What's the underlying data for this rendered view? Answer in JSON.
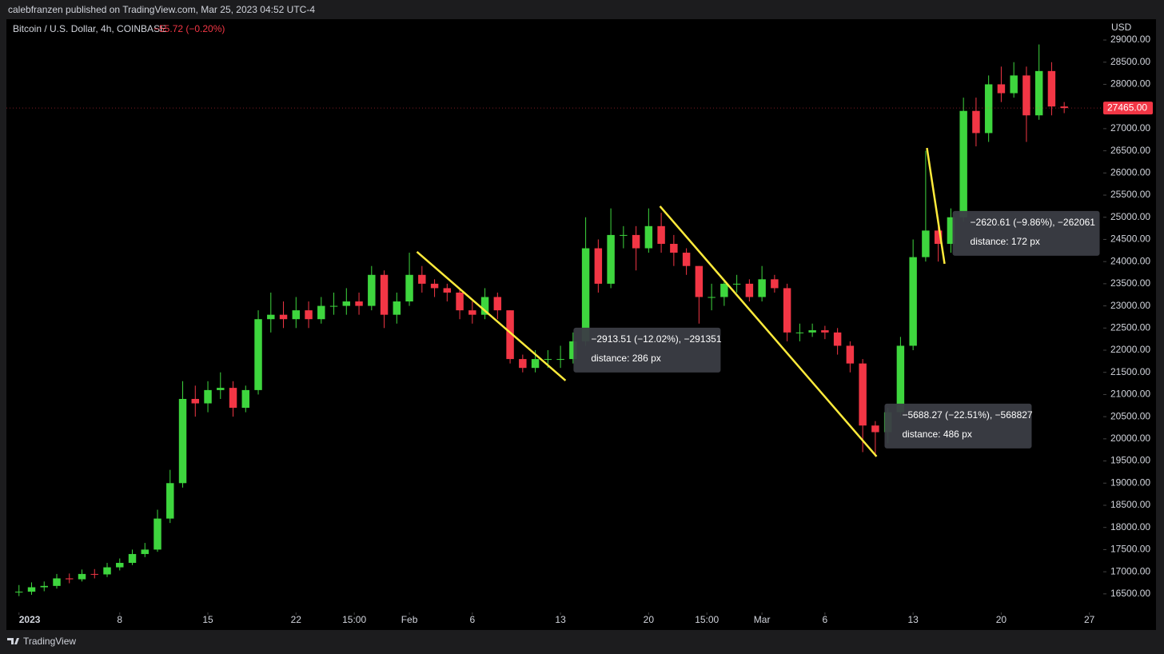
{
  "header": {
    "published": "calebfranzen published on TradingView.com, Mar 25, 2023 04:52 UTC-4"
  },
  "footer": {
    "brand": "TradingView"
  },
  "chart_data": {
    "type": "candlestick",
    "symbol": "Bitcoin / U.S. Dollar, 4h, COINBASE",
    "change": "−55.72 (−0.20%)",
    "currency": "USD",
    "up_color": "#3ed63e",
    "down_color": "#f23645",
    "grid": false,
    "x": [
      0,
      1,
      2,
      3,
      4,
      5,
      6,
      7,
      8,
      9,
      10,
      11,
      12,
      13,
      14,
      15,
      16,
      17,
      18,
      19,
      20,
      21,
      22,
      23,
      24,
      25,
      26,
      27,
      28,
      29,
      30,
      31,
      32,
      33,
      34,
      35,
      36,
      37,
      38,
      39,
      40,
      41,
      42,
      43,
      44,
      45,
      46,
      47,
      48,
      49,
      50,
      51,
      52,
      53,
      54,
      55,
      56,
      57,
      58,
      59,
      60,
      61,
      62,
      63,
      64,
      65,
      66,
      67,
      68,
      69,
      70,
      71,
      72,
      73,
      74,
      75,
      76,
      77,
      78,
      79,
      80,
      81,
      82,
      83
    ],
    "open": [
      16540,
      16550,
      16650,
      16680,
      16850,
      16830,
      16950,
      16940,
      17100,
      17200,
      17400,
      17500,
      18200,
      19000,
      20900,
      20800,
      21100,
      21150,
      20700,
      21100,
      22700,
      22800,
      22700,
      22900,
      22700,
      23000,
      23000,
      23100,
      23000,
      23700,
      22800,
      23100,
      23700,
      23500,
      23400,
      23300,
      22900,
      22800,
      23200,
      22900,
      21800,
      21600,
      21800,
      21800,
      21800,
      22200,
      24300,
      23500,
      24600,
      24600,
      24300,
      24800,
      24400,
      24200,
      23900,
      23200,
      23200,
      23500,
      23500,
      23200,
      23600,
      23400,
      22400,
      22400,
      22450,
      22400,
      22100,
      21700,
      20300,
      20150,
      20600,
      22100,
      24100,
      24700,
      24400,
      25000,
      27400,
      26900,
      28000,
      27800,
      28200,
      27300,
      28300,
      27500
    ],
    "high": [
      16700,
      16760,
      16780,
      16950,
      16960,
      17050,
      17060,
      17200,
      17300,
      17500,
      17650,
      18400,
      19300,
      21300,
      21200,
      21300,
      21500,
      21300,
      21200,
      22900,
      23300,
      23100,
      23200,
      23100,
      23200,
      23300,
      23400,
      23300,
      23900,
      23800,
      23300,
      24200,
      23900,
      23600,
      23500,
      23400,
      23100,
      23400,
      23300,
      22900,
      21900,
      22000,
      22000,
      22100,
      22400,
      25000,
      24500,
      25200,
      24800,
      24800,
      25200,
      25100,
      24600,
      24300,
      23900,
      23500,
      23600,
      23700,
      23600,
      23900,
      23700,
      23500,
      22600,
      22600,
      22550,
      22500,
      22200,
      21800,
      20400,
      20700,
      22300,
      24500,
      26500,
      25000,
      25200,
      27700,
      27700,
      28200,
      28400,
      28500,
      28400,
      28900,
      28500,
      27600
    ],
    "low": [
      16450,
      16480,
      16560,
      16620,
      16740,
      16780,
      16850,
      16880,
      17030,
      17150,
      17330,
      17450,
      18100,
      18900,
      20500,
      20600,
      20900,
      20500,
      20600,
      21000,
      22400,
      22500,
      22500,
      22500,
      22600,
      22800,
      22800,
      22800,
      22900,
      22500,
      22600,
      23000,
      23300,
      23200,
      23100,
      22700,
      22600,
      22700,
      22700,
      21700,
      21500,
      21500,
      21600,
      21600,
      21700,
      22100,
      23300,
      23400,
      24300,
      23800,
      24200,
      24200,
      23900,
      23700,
      22600,
      22900,
      23000,
      23300,
      23100,
      23100,
      23300,
      22200,
      22200,
      22300,
      22250,
      21900,
      21500,
      19700,
      19600,
      19900,
      20500,
      22000,
      24000,
      24000,
      24200,
      24900,
      26600,
      26700,
      27600,
      27700,
      26700,
      27200,
      27300,
      27350
    ],
    "close": [
      16550,
      16650,
      16680,
      16850,
      16830,
      16950,
      16940,
      17100,
      17200,
      17400,
      17500,
      18200,
      19000,
      20900,
      20800,
      21100,
      21150,
      20700,
      21100,
      22700,
      22800,
      22700,
      22900,
      22700,
      23000,
      23000,
      23100,
      23000,
      23700,
      22800,
      23100,
      23700,
      23500,
      23400,
      23300,
      22900,
      22800,
      23200,
      22900,
      21800,
      21600,
      21800,
      21800,
      21800,
      22200,
      24300,
      23500,
      24600,
      24600,
      24300,
      24800,
      24400,
      24200,
      23900,
      23200,
      23200,
      23500,
      23500,
      23200,
      23600,
      23400,
      22400,
      22400,
      22450,
      22400,
      22100,
      21700,
      20300,
      20150,
      20600,
      22100,
      24100,
      24700,
      24400,
      25000,
      27400,
      26900,
      28000,
      27800,
      28200,
      27300,
      28300,
      27500,
      27465
    ],
    "last_price": {
      "value": 27465,
      "label": "27465.00"
    },
    "xlim": [
      -1,
      86.1
    ],
    "ylim": [
      16100,
      29470
    ],
    "xticks": [
      {
        "value": 0,
        "label": "2023"
      },
      8,
      15,
      22,
      {
        "value": 26.625,
        "label": "15:00"
      },
      {
        "value": 31,
        "label": "Feb"
      },
      {
        "value": 36,
        "label": "6"
      },
      {
        "value": 43,
        "label": "13"
      },
      {
        "value": 50,
        "label": "20"
      },
      {
        "value": 54.625,
        "label": "15:00"
      },
      {
        "value": 59,
        "label": "Mar"
      },
      {
        "value": 64,
        "label": "6"
      },
      {
        "value": 71,
        "label": "13"
      },
      {
        "value": 78,
        "label": "20"
      },
      {
        "value": 85,
        "label": "27"
      }
    ],
    "yticks": [
      {
        "value": 16500,
        "label": "16500.00"
      },
      {
        "value": 17000,
        "label": "17000.00"
      },
      {
        "value": 17500,
        "label": "17500.00"
      },
      {
        "value": 18000,
        "label": "18000.00"
      },
      {
        "value": 18500,
        "label": "18500.00"
      },
      {
        "value": 19000,
        "label": "19000.00"
      },
      {
        "value": 19500,
        "label": "19500.00"
      },
      {
        "value": 20000,
        "label": "20000.00"
      },
      {
        "value": 20500,
        "label": "20500.00"
      },
      {
        "value": 21000,
        "label": "21000.00"
      },
      {
        "value": 21500,
        "label": "21500.00"
      },
      {
        "value": 22000,
        "label": "22000.00"
      },
      {
        "value": 22500,
        "label": "22500.00"
      },
      {
        "value": 23000,
        "label": "23000.00"
      },
      {
        "value": 23500,
        "label": "23500.00"
      },
      {
        "value": 24000,
        "label": "24000.00"
      },
      {
        "value": 24500,
        "label": "24500.00"
      },
      {
        "value": 25000,
        "label": "25000.00"
      },
      {
        "value": 25500,
        "label": "25500.00"
      },
      {
        "value": 26000,
        "label": "26000.00"
      },
      {
        "value": 26500,
        "label": "26500.00"
      },
      {
        "value": 27000,
        "label": "27000.00"
      },
      {
        "value": 27500,
        "label": "27500.00"
      },
      {
        "value": 28000,
        "label": "28000.00"
      },
      {
        "value": 28500,
        "label": "28500.00"
      },
      {
        "value": 29000,
        "label": "29000.00"
      }
    ],
    "measurements": [
      {
        "color": "#ffeb3b",
        "x": [
          31.6,
          43.4
        ],
        "y": [
          24220,
          21316
        ],
        "label": "−2913.51 (−12.02%), −291351",
        "distance": "distance: 286 px"
      },
      {
        "color": "#ffeb3b",
        "x": [
          50.9,
          68.1
        ],
        "y": [
          25248,
          19602
        ],
        "label": "−5688.27 (−22.51%), −568827",
        "distance": "distance: 486 px"
      },
      {
        "color": "#ffeb3b",
        "x": [
          72.1,
          73.5
        ],
        "y": [
          26565,
          23950
        ],
        "label": "−2620.61 (−9.86%), −262061",
        "distance": "distance: 172 px"
      }
    ]
  }
}
